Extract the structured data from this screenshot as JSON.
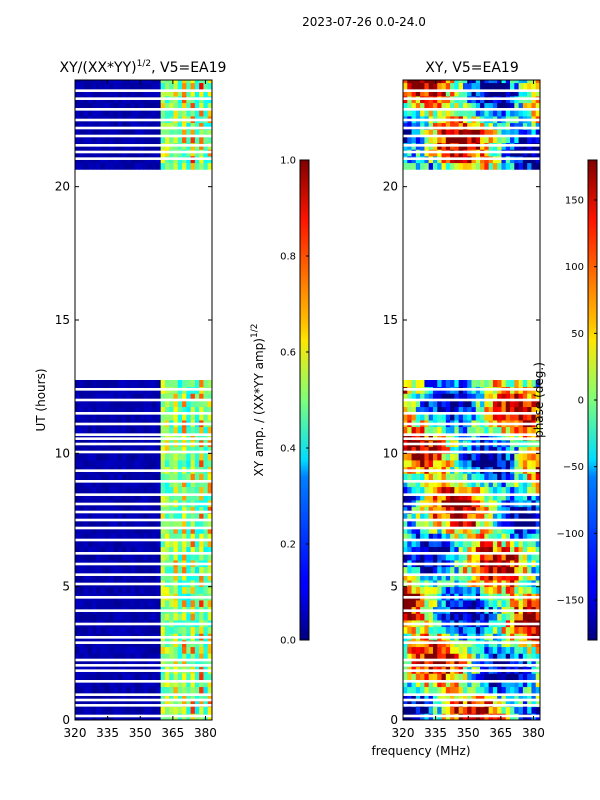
{
  "header": {
    "suptitle": "2023-07-26 0.0-24.0"
  },
  "chart_data": [
    {
      "type": "heatmap",
      "title": "XY/(XX*YY)^{1/2}, V5=EA19",
      "title_base": "XY/(XX*YY)",
      "title_sup": "1/2",
      "title_tail": ", V5=EA19",
      "ylabel": "UT (hours)",
      "xlabel": "",
      "xlim": [
        320,
        383
      ],
      "ylim": [
        0,
        24
      ],
      "xticks": [
        320,
        335,
        350,
        365,
        380
      ],
      "yticks": [
        0,
        5,
        10,
        15,
        20
      ],
      "bright_band_mhz": [
        360,
        383
      ],
      "colorbar": {
        "label": "XY amp. / (XX*YY amp)^{1/2}",
        "label_base": "XY amp. / (XX*YY amp)",
        "label_sup": "1/2",
        "range": [
          0.0,
          1.0
        ],
        "ticks": [
          "0.0",
          "0.2",
          "0.4",
          "0.6",
          "0.8",
          "1.0"
        ]
      }
    },
    {
      "type": "heatmap",
      "title": "XY, V5=EA19",
      "ylabel": "",
      "xlabel": "frequency (MHz)",
      "xlim": [
        320,
        383
      ],
      "ylim": [
        0,
        24
      ],
      "xticks": [
        320,
        335,
        350,
        365,
        380
      ],
      "yticks": [
        0,
        5,
        10,
        15,
        20
      ],
      "colorbar": {
        "label": "phase (deg.)",
        "range": [
          -180,
          180
        ],
        "ticks": [
          "150",
          "100",
          "50",
          "0",
          "−50",
          "−100",
          "−150"
        ],
        "tick_values": [
          150,
          100,
          50,
          0,
          -50,
          -100,
          -150
        ]
      }
    }
  ],
  "data_coverage_ut_hours": [
    [
      0,
      12.75
    ],
    [
      20.65,
      24
    ]
  ],
  "blank_rows_ut_hours": [
    0.15,
    0.55,
    0.75,
    0.95,
    1.45,
    1.85,
    2.05,
    2.25,
    2.9,
    3.1,
    3.6,
    4.1,
    4.6,
    5.1,
    5.45,
    5.85,
    6.25,
    6.75,
    7.2,
    7.5,
    7.8,
    8.1,
    8.45,
    8.95,
    9.35,
    10.05,
    10.35,
    10.55,
    10.7,
    11.1,
    11.5,
    12.0,
    12.4,
    21.05,
    21.3,
    21.55,
    21.9,
    22.2,
    22.5,
    22.9,
    23.3,
    23.6
  ]
}
